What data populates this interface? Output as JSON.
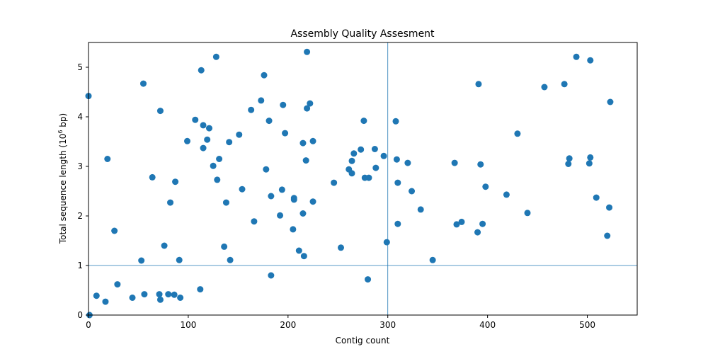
{
  "chart_data": {
    "type": "scatter",
    "title": "Assembly Quality Assesment",
    "xlabel": "Contig count",
    "ylabel_prefix": "Total sequence length (10",
    "ylabel_exp": "6",
    "ylabel_suffix": " bp)",
    "xlim": [
      0,
      550
    ],
    "ylim": [
      0,
      5.5
    ],
    "xticks": [
      0,
      100,
      200,
      300,
      400,
      500
    ],
    "yticks": [
      0,
      1,
      2,
      3,
      4,
      5
    ],
    "grid": false,
    "reference_lines": {
      "x": 300,
      "y": 1
    },
    "point_color": "#1f77b4",
    "line_color": "#1f77b4",
    "points": [
      {
        "x": 0,
        "y": 4.42
      },
      {
        "x": 1,
        "y": 0.0
      },
      {
        "x": 8,
        "y": 0.39
      },
      {
        "x": 17,
        "y": 0.27
      },
      {
        "x": 19,
        "y": 3.15
      },
      {
        "x": 26,
        "y": 1.7
      },
      {
        "x": 29,
        "y": 0.62
      },
      {
        "x": 44,
        "y": 0.35
      },
      {
        "x": 53,
        "y": 1.1
      },
      {
        "x": 55,
        "y": 4.67
      },
      {
        "x": 56,
        "y": 0.42
      },
      {
        "x": 64,
        "y": 2.78
      },
      {
        "x": 71,
        "y": 0.42
      },
      {
        "x": 72,
        "y": 4.12
      },
      {
        "x": 72,
        "y": 0.31
      },
      {
        "x": 76,
        "y": 1.4
      },
      {
        "x": 80,
        "y": 0.42
      },
      {
        "x": 82,
        "y": 2.27
      },
      {
        "x": 86,
        "y": 0.41
      },
      {
        "x": 87,
        "y": 2.69
      },
      {
        "x": 91,
        "y": 1.11
      },
      {
        "x": 92,
        "y": 0.35
      },
      {
        "x": 99,
        "y": 3.51
      },
      {
        "x": 107,
        "y": 3.94
      },
      {
        "x": 112,
        "y": 0.52
      },
      {
        "x": 113,
        "y": 4.94
      },
      {
        "x": 115,
        "y": 3.37
      },
      {
        "x": 115,
        "y": 3.83
      },
      {
        "x": 119,
        "y": 3.54
      },
      {
        "x": 121,
        "y": 3.77
      },
      {
        "x": 125,
        "y": 3.01
      },
      {
        "x": 128,
        "y": 5.21
      },
      {
        "x": 129,
        "y": 2.73
      },
      {
        "x": 131,
        "y": 3.15
      },
      {
        "x": 136,
        "y": 1.38
      },
      {
        "x": 138,
        "y": 2.27
      },
      {
        "x": 141,
        "y": 3.49
      },
      {
        "x": 142,
        "y": 1.11
      },
      {
        "x": 151,
        "y": 3.64
      },
      {
        "x": 154,
        "y": 2.54
      },
      {
        "x": 163,
        "y": 4.14
      },
      {
        "x": 166,
        "y": 1.89
      },
      {
        "x": 173,
        "y": 4.33
      },
      {
        "x": 176,
        "y": 4.84
      },
      {
        "x": 178,
        "y": 2.94
      },
      {
        "x": 181,
        "y": 3.92
      },
      {
        "x": 183,
        "y": 2.4
      },
      {
        "x": 183,
        "y": 0.8
      },
      {
        "x": 192,
        "y": 2.01
      },
      {
        "x": 194,
        "y": 2.53
      },
      {
        "x": 195,
        "y": 4.24
      },
      {
        "x": 197,
        "y": 3.67
      },
      {
        "x": 205,
        "y": 1.73
      },
      {
        "x": 206,
        "y": 2.36
      },
      {
        "x": 206,
        "y": 2.33
      },
      {
        "x": 211,
        "y": 1.3
      },
      {
        "x": 215,
        "y": 3.47
      },
      {
        "x": 215,
        "y": 2.05
      },
      {
        "x": 216,
        "y": 1.19
      },
      {
        "x": 218,
        "y": 3.12
      },
      {
        "x": 219,
        "y": 4.17
      },
      {
        "x": 219,
        "y": 5.31
      },
      {
        "x": 222,
        "y": 4.27
      },
      {
        "x": 225,
        "y": 2.29
      },
      {
        "x": 225,
        "y": 3.51
      },
      {
        "x": 246,
        "y": 2.67
      },
      {
        "x": 253,
        "y": 1.36
      },
      {
        "x": 261,
        "y": 2.94
      },
      {
        "x": 264,
        "y": 3.11
      },
      {
        "x": 264,
        "y": 2.86
      },
      {
        "x": 266,
        "y": 3.26
      },
      {
        "x": 273,
        "y": 3.34
      },
      {
        "x": 276,
        "y": 3.92
      },
      {
        "x": 277,
        "y": 2.77
      },
      {
        "x": 280,
        "y": 0.72
      },
      {
        "x": 281,
        "y": 2.77
      },
      {
        "x": 287,
        "y": 3.35
      },
      {
        "x": 288,
        "y": 2.97
      },
      {
        "x": 296,
        "y": 3.21
      },
      {
        "x": 299,
        "y": 1.47
      },
      {
        "x": 308,
        "y": 3.91
      },
      {
        "x": 309,
        "y": 3.14
      },
      {
        "x": 310,
        "y": 2.67
      },
      {
        "x": 310,
        "y": 1.84
      },
      {
        "x": 320,
        "y": 3.07
      },
      {
        "x": 324,
        "y": 2.5
      },
      {
        "x": 333,
        "y": 2.13
      },
      {
        "x": 345,
        "y": 1.11
      },
      {
        "x": 367,
        "y": 3.07
      },
      {
        "x": 369,
        "y": 1.83
      },
      {
        "x": 374,
        "y": 1.88
      },
      {
        "x": 390,
        "y": 1.67
      },
      {
        "x": 391,
        "y": 4.66
      },
      {
        "x": 393,
        "y": 3.04
      },
      {
        "x": 395,
        "y": 1.84
      },
      {
        "x": 398,
        "y": 2.59
      },
      {
        "x": 419,
        "y": 2.43
      },
      {
        "x": 430,
        "y": 3.66
      },
      {
        "x": 440,
        "y": 2.06
      },
      {
        "x": 457,
        "y": 4.6
      },
      {
        "x": 477,
        "y": 4.66
      },
      {
        "x": 481,
        "y": 3.05
      },
      {
        "x": 482,
        "y": 3.16
      },
      {
        "x": 489,
        "y": 5.21
      },
      {
        "x": 502,
        "y": 3.06
      },
      {
        "x": 503,
        "y": 5.14
      },
      {
        "x": 503,
        "y": 3.18
      },
      {
        "x": 509,
        "y": 2.37
      },
      {
        "x": 520,
        "y": 1.6
      },
      {
        "x": 522,
        "y": 2.17
      },
      {
        "x": 523,
        "y": 4.3
      }
    ]
  }
}
